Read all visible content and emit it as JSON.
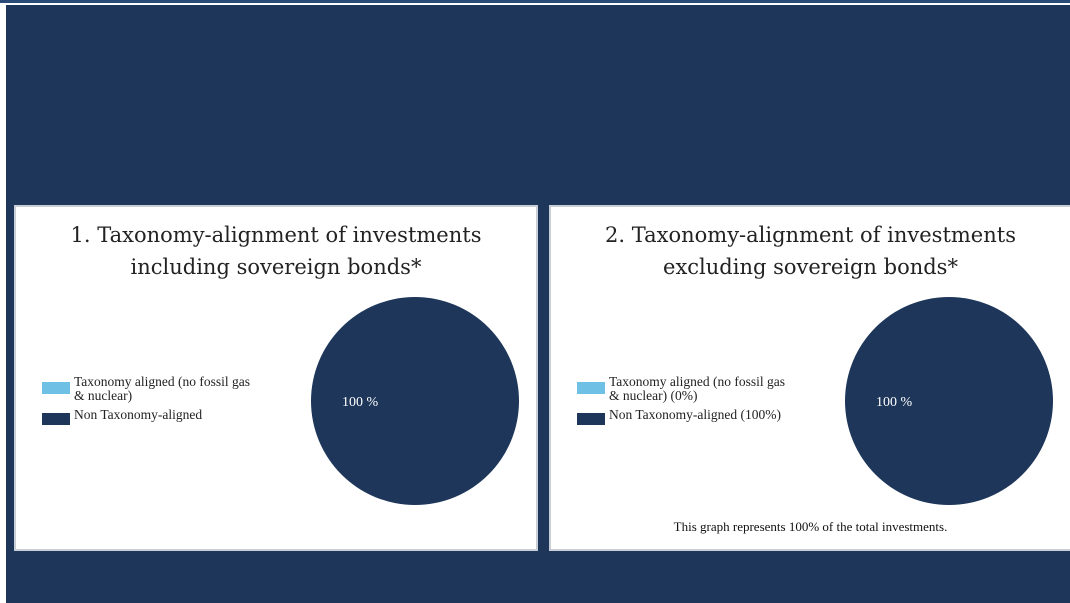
{
  "colors": {
    "background": "#1d365a",
    "taxonomy_aligned": "#6ec1e4",
    "non_taxonomy_aligned": "#1d365a"
  },
  "chart_data": [
    {
      "type": "pie",
      "title": "1. Taxonomy-alignment of investments\nincluding sovereign bonds*",
      "legend": [
        {
          "label": "Taxonomy aligned (no fossil gas\n& nuclear)",
          "color": "#6ec1e4"
        },
        {
          "label": "Non Taxonomy-aligned",
          "color": "#1d365a"
        }
      ],
      "slices": [
        {
          "name": "Taxonomy aligned (no fossil gas & nuclear)",
          "value": 0,
          "color": "#6ec1e4"
        },
        {
          "name": "Non Taxonomy-aligned",
          "value": 100,
          "color": "#1d365a"
        }
      ],
      "data_labels": [
        "100 %"
      ],
      "legend_placement": "left"
    },
    {
      "type": "pie",
      "title": "2. Taxonomy-alignment of investments\nexcluding sovereign bonds*",
      "legend": [
        {
          "label": "Taxonomy aligned (no fossil gas\n& nuclear) (0%)",
          "color": "#6ec1e4"
        },
        {
          "label": "Non Taxonomy-aligned (100%)",
          "color": "#1d365a"
        }
      ],
      "slices": [
        {
          "name": "Taxonomy aligned (no fossil gas & nuclear)",
          "value": 0,
          "color": "#6ec1e4"
        },
        {
          "name": "Non Taxonomy-aligned",
          "value": 100,
          "color": "#1d365a"
        }
      ],
      "data_labels": [
        "100 %"
      ],
      "legend_placement": "left",
      "note": "This graph represents 100% of the total investments."
    }
  ]
}
